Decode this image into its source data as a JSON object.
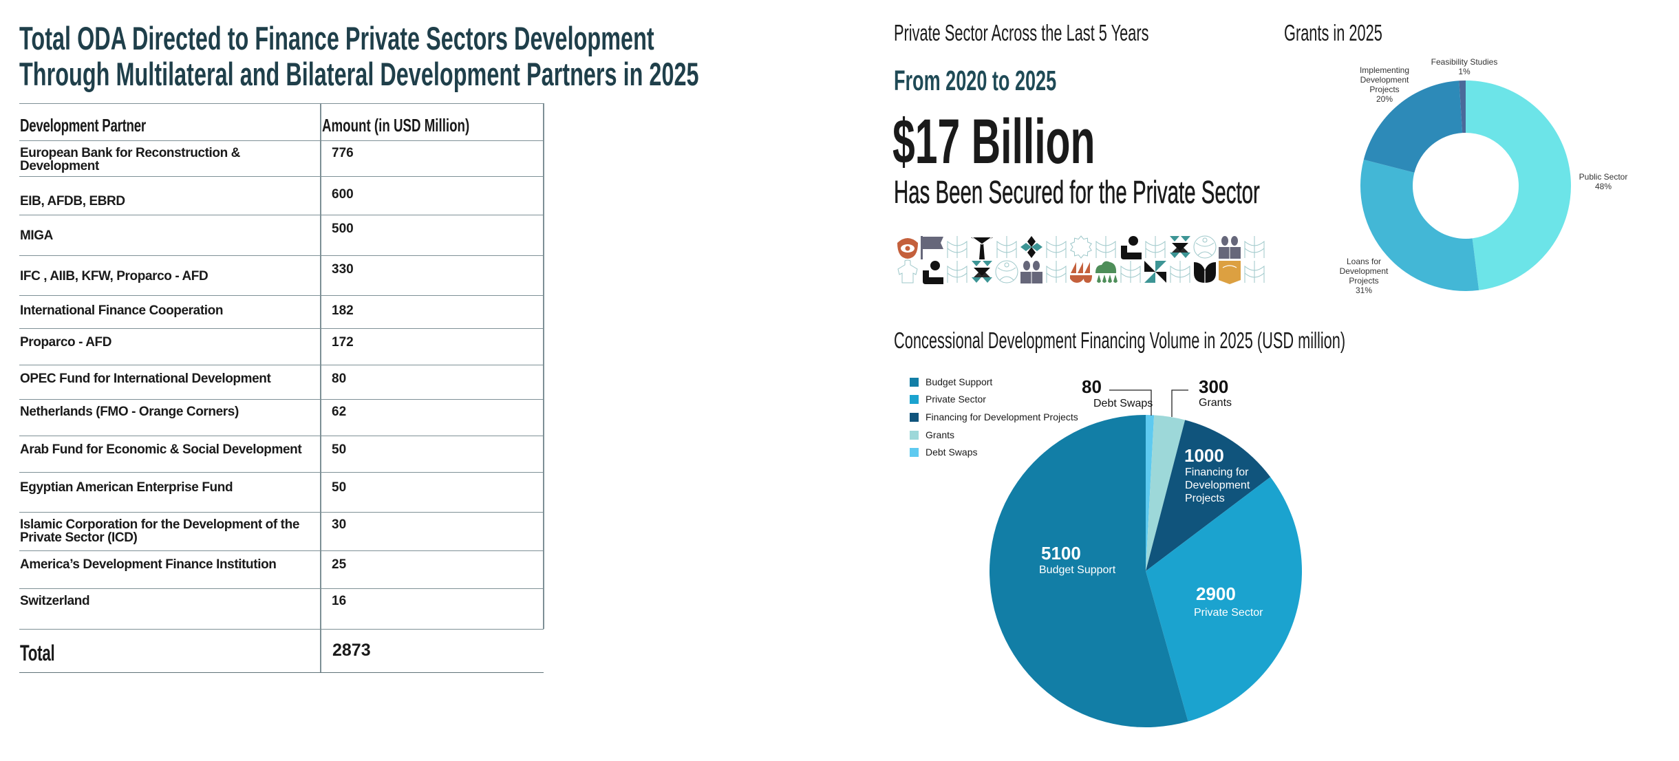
{
  "title": {
    "line1": "Total ODA Directed to Finance Private Sectors Development",
    "line2": "Through Multilateral and Bilateral Development Partners in 2025"
  },
  "table": {
    "headers": [
      "Development Partner",
      "Amount (in USD Million)"
    ],
    "rows": [
      {
        "partner": "European Bank for Reconstruction & Development",
        "amount": "776"
      },
      {
        "partner": "EIB,  AFDB, EBRD",
        "amount": "600"
      },
      {
        "partner": "MIGA",
        "amount": "500"
      },
      {
        "partner": "IFC , AIIB, KFW, Proparco - AFD",
        "amount": "330"
      },
      {
        "partner": "International Finance Cooperation",
        "amount": "182"
      },
      {
        "partner": "Proparco - AFD",
        "amount": "172"
      },
      {
        "partner": "OPEC Fund for International Development",
        "amount": "80"
      },
      {
        "partner": "Netherlands (FMO - Orange Corners)",
        "amount": "62"
      },
      {
        "partner": "Arab Fund for Economic & Social Development",
        "amount": "50"
      },
      {
        "partner": "Egyptian American Enterprise Fund",
        "amount": "50"
      },
      {
        "partner": "Islamic Corporation for the Development of the Private Sector (ICD)",
        "amount": "30"
      },
      {
        "partner": "America’s Development Finance Institution",
        "amount": "25"
      },
      {
        "partner": "Switzerland",
        "amount": "16"
      }
    ],
    "total_label": "Total",
    "total_value": "2873"
  },
  "private_sector": {
    "heading": "Private Sector Across the Last 5 Years",
    "period": "From 2020 to 2025",
    "amount": "$17 Billion",
    "caption": "Has Been Secured for the Private Sector",
    "pattern_icons": [
      "eye-hand-icon",
      "flag-icon",
      "outline-motif-icon",
      "palm-tree-icon",
      "outline-motif-icon",
      "diamond-star-icon",
      "outline-motif-icon",
      "outline-sun-icon",
      "outline-motif-icon",
      "person-sun-icon",
      "outline-motif-icon",
      "hourglass-triangles-icon",
      "outline-circle-icon",
      "readers-icon",
      "outline-motif-icon",
      "outline-person-icon",
      "person-sun-icon",
      "outline-motif-icon",
      "hourglass-triangles-icon",
      "outline-circle-icon",
      "readers-icon",
      "outline-motif-icon",
      "boats-icon",
      "tree-rain-icon",
      "outline-motif-icon",
      "pinwheel-icon",
      "outline-motif-icon",
      "tulip-icon",
      "open-book-icon",
      "outline-motif-icon"
    ]
  },
  "chart_data": [
    {
      "type": "pie",
      "variant": "donut",
      "title": "Grants in 2025",
      "unit": "percent",
      "categories": [
        "Public Sector",
        "Loans for Development Projects",
        "Implementing Development Projects",
        "Feasibility Studies"
      ],
      "values": [
        48,
        31,
        20,
        1
      ],
      "labels": [
        "Public Sector\n48%",
        "Loans for\nDevelopment\nProjects\n31%",
        "Implementing\nDevelopment\nProjects\n20%",
        "Feasibility Studies\n1%"
      ],
      "colors": [
        "#6ce4e8",
        "#43b7d6",
        "#2d8ab8",
        "#4a6a9a"
      ],
      "start": "top",
      "direction": "clockwise",
      "legend": "none"
    },
    {
      "type": "pie",
      "title": "Concessional Development Financing Volume in 2025 (USD million)",
      "unit": "USD million",
      "categories": [
        "Debt Swaps",
        "Grants",
        "Financing for Development Projects",
        "Private Sector",
        "Budget Support"
      ],
      "values": [
        80,
        300,
        1000,
        2900,
        5100
      ],
      "colors": [
        "#5ecaf0",
        "#9dd8d9",
        "#10547c",
        "#1ba3cf",
        "#127ea6"
      ],
      "slice_labels": [
        {
          "value": "80",
          "name": "Debt Swaps",
          "placement": "callout"
        },
        {
          "value": "300",
          "name": "Grants",
          "placement": "callout"
        },
        {
          "value": "1000",
          "name": "Financing for\nDevelopment\nProjects",
          "placement": "inside"
        },
        {
          "value": "2900",
          "name": "Private Sector",
          "placement": "inside"
        },
        {
          "value": "5100",
          "name": "Budget Support",
          "placement": "inside"
        }
      ],
      "legend_entries": [
        "Budget Support",
        "Private Sector",
        "Financing for Development Projects",
        "Grants",
        "Debt Swaps"
      ],
      "legend_colors": [
        "#127ea6",
        "#1ba3cf",
        "#10547c",
        "#9dd8d9",
        "#5ecaf0"
      ],
      "legend": "top-left",
      "start": "top",
      "direction": "clockwise"
    }
  ]
}
